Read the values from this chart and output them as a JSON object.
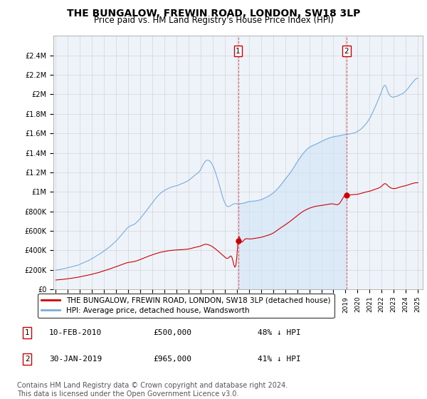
{
  "title": "THE BUNGALOW, FREWIN ROAD, LONDON, SW18 3LP",
  "subtitle": "Price paid vs. HM Land Registry's House Price Index (HPI)",
  "title_fontsize": 10,
  "subtitle_fontsize": 8.5,
  "hpi_color": "#7aabdc",
  "hpi_fill_color": "#d0e4f7",
  "hpi_label": "HPI: Average price, detached house, Wandsworth",
  "property_color": "#cc0000",
  "property_label": "THE BUNGALOW, FREWIN ROAD, LONDON, SW18 3LP (detached house)",
  "ylim": [
    0,
    2600000
  ],
  "yticks": [
    0,
    200000,
    400000,
    600000,
    800000,
    1000000,
    1200000,
    1400000,
    1600000,
    1800000,
    2000000,
    2200000,
    2400000
  ],
  "ytick_labels": [
    "£0",
    "£200K",
    "£400K",
    "£600K",
    "£800K",
    "£1M",
    "£1.2M",
    "£1.4M",
    "£1.6M",
    "£1.8M",
    "£2M",
    "£2.2M",
    "£2.4M"
  ],
  "xlabel_years": [
    1995,
    1996,
    1997,
    1998,
    1999,
    2000,
    2001,
    2002,
    2003,
    2004,
    2005,
    2006,
    2007,
    2008,
    2009,
    2010,
    2011,
    2012,
    2013,
    2014,
    2015,
    2016,
    2017,
    2018,
    2019,
    2020,
    2021,
    2022,
    2023,
    2024,
    2025
  ],
  "purchases": [
    {
      "label": "1",
      "year_float": 2010.1,
      "price": 500000,
      "date_str": "10-FEB-2010",
      "pct": "48%",
      "direction": "↓"
    },
    {
      "label": "2",
      "year_float": 2019.08,
      "price": 965000,
      "date_str": "30-JAN-2019",
      "pct": "41%",
      "direction": "↓"
    }
  ],
  "annotation_box_color": "#cc0000",
  "vline_color": "#cc0000",
  "footer_text": "Contains HM Land Registry data © Crown copyright and database right 2024.\nThis data is licensed under the Open Government Licence v3.0.",
  "footer_fontsize": 7,
  "grid_color": "#cccccc",
  "bg_color": "#ffffff",
  "plot_bg_color": "#eef3fa"
}
